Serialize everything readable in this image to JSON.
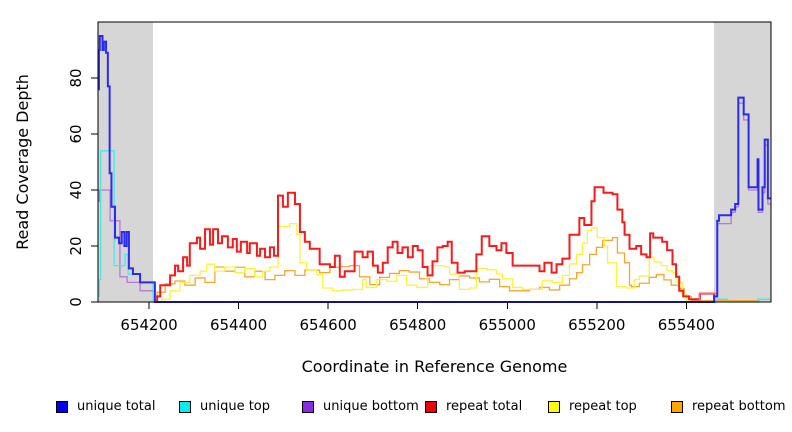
{
  "chart_data": {
    "type": "line",
    "subtype": "step-after",
    "title": "",
    "xlabel": "Coordinate in Reference Genome",
    "ylabel": "Read Coverage Depth",
    "xlim": [
      654086,
      655589
    ],
    "ylim": [
      0,
      100
    ],
    "x_ticks": [
      654200,
      654400,
      654600,
      654800,
      655000,
      655200,
      655400
    ],
    "y_ticks": [
      0,
      20,
      40,
      60,
      80
    ],
    "grid": false,
    "legend_position": "bottom",
    "masked_region_color": "#d6d6d6",
    "shaded_regions": [
      {
        "x0": 654086,
        "x1": 654209
      },
      {
        "x0": 655462,
        "x1": 655589
      }
    ],
    "draw_order": [
      "repeat bottom",
      "repeat top",
      "repeat total",
      "unique bottom",
      "unique top",
      "unique total"
    ],
    "series": [
      {
        "name": "unique total",
        "color": "#0000ee",
        "line_color": "#2b2bef",
        "line_width": 2,
        "points": [
          [
            654086,
            76
          ],
          [
            654088,
            90
          ],
          [
            654090,
            95
          ],
          [
            654096,
            90
          ],
          [
            654099,
            93
          ],
          [
            654104,
            89
          ],
          [
            654108,
            77
          ],
          [
            654112,
            46
          ],
          [
            654116,
            34
          ],
          [
            654124,
            23
          ],
          [
            654133,
            21
          ],
          [
            654139,
            25
          ],
          [
            654145,
            20
          ],
          [
            654150,
            25
          ],
          [
            654155,
            12
          ],
          [
            654164,
            10
          ],
          [
            654180,
            7
          ],
          [
            654213,
            0
          ],
          [
            655462,
            2
          ],
          [
            655469,
            29
          ],
          [
            655473,
            31
          ],
          [
            655500,
            33
          ],
          [
            655509,
            35
          ],
          [
            655516,
            73
          ],
          [
            655528,
            67
          ],
          [
            655539,
            41
          ],
          [
            655557,
            41
          ],
          [
            655559,
            51
          ],
          [
            655561,
            33
          ],
          [
            655570,
            41
          ],
          [
            655575,
            58
          ],
          [
            655582,
            37
          ],
          [
            655589,
            37
          ]
        ]
      },
      {
        "name": "unique top",
        "color": "#00eeee",
        "line_color": "#49e8e8",
        "line_width": 1.3,
        "points": [
          [
            654086,
            2
          ],
          [
            654089,
            8
          ],
          [
            654092,
            54
          ],
          [
            654122,
            13
          ],
          [
            654146,
            17
          ],
          [
            654153,
            10
          ],
          [
            654180,
            7
          ],
          [
            654209,
            0
          ],
          [
            655469,
            1
          ],
          [
            655492,
            0
          ],
          [
            655562,
            1
          ],
          [
            655589,
            1
          ]
        ]
      },
      {
        "name": "unique bottom",
        "color": "#8a2be2",
        "line_color": "#b678d9",
        "line_width": 1.3,
        "points": [
          [
            654086,
            36
          ],
          [
            654089,
            40
          ],
          [
            654113,
            29
          ],
          [
            654135,
            9
          ],
          [
            654151,
            7
          ],
          [
            654180,
            4
          ],
          [
            654213,
            0
          ],
          [
            655429,
            3
          ],
          [
            655469,
            28
          ],
          [
            655500,
            32
          ],
          [
            655509,
            34
          ],
          [
            655516,
            71
          ],
          [
            655528,
            65
          ],
          [
            655539,
            40
          ],
          [
            655557,
            40
          ],
          [
            655559,
            49
          ],
          [
            655561,
            32
          ],
          [
            655570,
            39
          ],
          [
            655575,
            56
          ],
          [
            655582,
            35
          ],
          [
            655589,
            35
          ]
        ]
      },
      {
        "name": "repeat total",
        "color": "#ee0000",
        "line_color": "#f71b1b",
        "line_width": 2,
        "points": [
          [
            654213,
            0
          ],
          [
            654218,
            2
          ],
          [
            654225,
            6
          ],
          [
            654247,
            9.5
          ],
          [
            654258,
            13
          ],
          [
            654265,
            11
          ],
          [
            654276,
            16
          ],
          [
            654285,
            13
          ],
          [
            654291,
            21
          ],
          [
            654307,
            23
          ],
          [
            654314,
            19
          ],
          [
            654325,
            26
          ],
          [
            654336,
            20.5
          ],
          [
            654343,
            26
          ],
          [
            654354,
            21
          ],
          [
            654363,
            23.5
          ],
          [
            654376,
            19.5
          ],
          [
            654387,
            22.5
          ],
          [
            654396,
            18
          ],
          [
            654405,
            21.5
          ],
          [
            654419,
            17.5
          ],
          [
            654425,
            21
          ],
          [
            654441,
            16.5
          ],
          [
            654448,
            19
          ],
          [
            654459,
            16
          ],
          [
            654470,
            19.5
          ],
          [
            654479,
            16.5
          ],
          [
            654488,
            38
          ],
          [
            654499,
            34
          ],
          [
            654510,
            39
          ],
          [
            654526,
            35
          ],
          [
            654537,
            25
          ],
          [
            654548,
            21.5
          ],
          [
            654559,
            19
          ],
          [
            654581,
            13.5
          ],
          [
            654604,
            12.5
          ],
          [
            654615,
            16.5
          ],
          [
            654626,
            9
          ],
          [
            654637,
            11
          ],
          [
            654659,
            18
          ],
          [
            654677,
            16
          ],
          [
            654688,
            18
          ],
          [
            654700,
            13
          ],
          [
            654711,
            10.5
          ],
          [
            654722,
            14
          ],
          [
            654733,
            19.5
          ],
          [
            654744,
            21.5
          ],
          [
            654755,
            17.5
          ],
          [
            654766,
            19.5
          ],
          [
            654778,
            16
          ],
          [
            654789,
            20
          ],
          [
            654800,
            18.5
          ],
          [
            654811,
            12.5
          ],
          [
            654822,
            9.5
          ],
          [
            654833,
            14.5
          ],
          [
            654844,
            19.5
          ],
          [
            654856,
            20
          ],
          [
            654867,
            21.5
          ],
          [
            654876,
            14
          ],
          [
            654889,
            10.5
          ],
          [
            654905,
            11
          ],
          [
            654931,
            17
          ],
          [
            654943,
            23.5
          ],
          [
            654960,
            20
          ],
          [
            654976,
            18.5
          ],
          [
            654987,
            21
          ],
          [
            654998,
            17.5
          ],
          [
            655012,
            13
          ],
          [
            655065,
            13
          ],
          [
            655072,
            11
          ],
          [
            655083,
            14
          ],
          [
            655099,
            10.5
          ],
          [
            655110,
            13.5
          ],
          [
            655123,
            15.5
          ],
          [
            655139,
            24
          ],
          [
            655161,
            30
          ],
          [
            655172,
            27.5
          ],
          [
            655188,
            36
          ],
          [
            655195,
            41
          ],
          [
            655215,
            39
          ],
          [
            655235,
            38.5
          ],
          [
            655246,
            33
          ],
          [
            655257,
            28.5
          ],
          [
            655262,
            24
          ],
          [
            655273,
            19
          ],
          [
            655288,
            20
          ],
          [
            655299,
            17
          ],
          [
            655311,
            16
          ],
          [
            655319,
            24.5
          ],
          [
            655326,
            23
          ],
          [
            655346,
            21.5
          ],
          [
            655357,
            18.5
          ],
          [
            655369,
            13.5
          ],
          [
            655377,
            9
          ],
          [
            655384,
            4
          ],
          [
            655393,
            2
          ],
          [
            655406,
            1
          ],
          [
            655430,
            3
          ],
          [
            655462,
            0
          ]
        ]
      },
      {
        "name": "repeat top",
        "color": "#ffff00",
        "line_color": "#fff23d",
        "line_width": 1.3,
        "points": [
          [
            654218,
            0
          ],
          [
            654229,
            1
          ],
          [
            654247,
            4
          ],
          [
            654269,
            7
          ],
          [
            654291,
            9.5
          ],
          [
            654314,
            11
          ],
          [
            654329,
            13.5
          ],
          [
            654347,
            11
          ],
          [
            654369,
            12.5
          ],
          [
            654392,
            10.5
          ],
          [
            654414,
            12
          ],
          [
            654436,
            9
          ],
          [
            654454,
            11
          ],
          [
            654470,
            12.5
          ],
          [
            654488,
            27
          ],
          [
            654514,
            28
          ],
          [
            654530,
            24
          ],
          [
            654537,
            14
          ],
          [
            654552,
            11.5
          ],
          [
            654575,
            9.8
          ],
          [
            654588,
            5
          ],
          [
            654610,
            4
          ],
          [
            654633,
            4.3
          ],
          [
            654655,
            4.5
          ],
          [
            654677,
            8
          ],
          [
            654685,
            5.2
          ],
          [
            654708,
            8
          ],
          [
            654731,
            7.4
          ],
          [
            654753,
            9.5
          ],
          [
            654775,
            6
          ],
          [
            654798,
            5.2
          ],
          [
            654822,
            13
          ],
          [
            654860,
            12.5
          ],
          [
            654871,
            10
          ],
          [
            654893,
            4.5
          ],
          [
            654916,
            5
          ],
          [
            654931,
            12
          ],
          [
            654955,
            11.5
          ],
          [
            654976,
            10
          ],
          [
            654989,
            8.3
          ],
          [
            655012,
            5.2
          ],
          [
            655034,
            4.5
          ],
          [
            655078,
            7.6
          ],
          [
            655101,
            7
          ],
          [
            655123,
            9.5
          ],
          [
            655139,
            13.6
          ],
          [
            655155,
            17
          ],
          [
            655168,
            21
          ],
          [
            655179,
            25.5
          ],
          [
            655188,
            26.5
          ],
          [
            655201,
            23
          ],
          [
            655217,
            20
          ],
          [
            655224,
            14
          ],
          [
            655244,
            5.5
          ],
          [
            655266,
            5
          ],
          [
            655284,
            8
          ],
          [
            655295,
            9.3
          ],
          [
            655317,
            16
          ],
          [
            655328,
            14.3
          ],
          [
            655344,
            13
          ],
          [
            655357,
            11.2
          ],
          [
            655369,
            10.5
          ],
          [
            655379,
            7
          ],
          [
            655391,
            2.5
          ],
          [
            655400,
            0
          ]
        ]
      },
      {
        "name": "repeat bottom",
        "color": "#ffa500",
        "line_color": "#f5a733",
        "line_width": 1.3,
        "points": [
          [
            654213,
            0
          ],
          [
            654218,
            3.5
          ],
          [
            654236,
            6.5
          ],
          [
            654258,
            7.5
          ],
          [
            654280,
            6
          ],
          [
            654303,
            8.6
          ],
          [
            654325,
            7
          ],
          [
            654347,
            12.5
          ],
          [
            654369,
            11
          ],
          [
            654392,
            12.4
          ],
          [
            654414,
            9
          ],
          [
            654436,
            11
          ],
          [
            654459,
            8
          ],
          [
            654481,
            9.5
          ],
          [
            654503,
            11.2
          ],
          [
            654526,
            9.5
          ],
          [
            654548,
            11.4
          ],
          [
            654581,
            10.5
          ],
          [
            654604,
            12.4
          ],
          [
            654626,
            12.6
          ],
          [
            654648,
            13
          ],
          [
            654670,
            9
          ],
          [
            654693,
            6.2
          ],
          [
            654715,
            8.8
          ],
          [
            654737,
            10.2
          ],
          [
            654759,
            11.2
          ],
          [
            654781,
            10.7
          ],
          [
            654804,
            8.3
          ],
          [
            654826,
            7
          ],
          [
            654849,
            6.2
          ],
          [
            654871,
            8
          ],
          [
            654893,
            9.3
          ],
          [
            654916,
            8.6
          ],
          [
            654938,
            7.2
          ],
          [
            654960,
            8.1
          ],
          [
            654983,
            5.5
          ],
          [
            655005,
            4
          ],
          [
            655050,
            4.5
          ],
          [
            655072,
            5.2
          ],
          [
            655094,
            4.3
          ],
          [
            655117,
            6
          ],
          [
            655139,
            8.3
          ],
          [
            655155,
            10.5
          ],
          [
            655168,
            13.3
          ],
          [
            655184,
            17
          ],
          [
            655199,
            19.5
          ],
          [
            655213,
            22
          ],
          [
            655235,
            23
          ],
          [
            655246,
            17.5
          ],
          [
            655262,
            14
          ],
          [
            655273,
            6
          ],
          [
            655277,
            5.5
          ],
          [
            655295,
            6.7
          ],
          [
            655317,
            8.8
          ],
          [
            655333,
            9.8
          ],
          [
            655350,
            7.9
          ],
          [
            655366,
            6
          ],
          [
            655384,
            4.8
          ],
          [
            655395,
            2
          ],
          [
            655411,
            0.5
          ],
          [
            655560,
            1
          ],
          [
            655589,
            1
          ]
        ]
      }
    ],
    "legend_items": [
      {
        "label": "unique total",
        "color": "#0000ee"
      },
      {
        "label": "unique top",
        "color": "#00eeee"
      },
      {
        "label": "unique bottom",
        "color": "#8a2be2"
      },
      {
        "label": "repeat total",
        "color": "#ee0000"
      },
      {
        "label": "repeat top",
        "color": "#ffff00"
      },
      {
        "label": "repeat bottom",
        "color": "#ffa500"
      }
    ]
  }
}
